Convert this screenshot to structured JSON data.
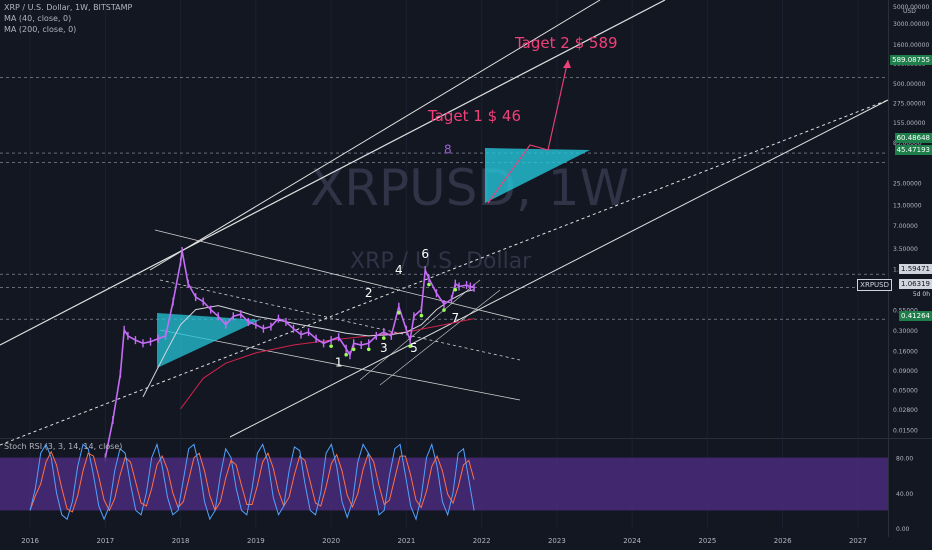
{
  "legend": {
    "symbol_line": "XRP / U.S. Dollar, 1W, BITSTAMP",
    "ma1": "MA (40, close, 0)",
    "ma2": "MA (200, close, 0)",
    "rsi": "Stoch RSI (3, 3, 14, 14, close)"
  },
  "watermark": {
    "symbol": "XRPUSD, 1W",
    "name": "XRP / U.S. Dollar"
  },
  "annotations": {
    "target1": "Taget 1  $ 46",
    "target2": "Taget 2  $ 589",
    "wave_labels": [
      {
        "text": "1",
        "x": 2020.1,
        "y": 0.1
      },
      {
        "text": "2",
        "x": 2020.5,
        "y": 0.8
      },
      {
        "text": "3",
        "x": 2020.7,
        "y": 0.155
      },
      {
        "text": "4",
        "x": 2020.9,
        "y": 1.6
      },
      {
        "text": "5",
        "x": 2021.1,
        "y": 0.155
      },
      {
        "text": "6",
        "x": 2021.25,
        "y": 2.6
      },
      {
        "text": "7",
        "x": 2021.65,
        "y": 0.38
      },
      {
        "text": "8",
        "x": 2021.55,
        "y": 60
      }
    ]
  },
  "price_tags": {
    "t589": "589.08755",
    "t60": "60.48648",
    "t45": "45.47193",
    "t1_59": "1.59471",
    "sym": "XRPUSD",
    "t1_06": "1.06319",
    "sd": "5d 0h",
    "t0_41": "0.41264"
  },
  "colors": {
    "background": "#131722",
    "candles": "#c46cf5",
    "ma40": "#d1d4dc",
    "ma200": "#d1224a",
    "triangle": "#26c6da",
    "target": "#f0407a",
    "wave_label": "#ffffff",
    "wave8": "#9c5fd6",
    "k_line": "#4fa3ff",
    "d_line": "#ff7043",
    "rsi_band": "#4a2a7a",
    "dots": "#9cff57"
  },
  "chart_data": {
    "type": "line",
    "title": "XRP / U.S. Dollar, 1W, BITSTAMP",
    "y_scale": "log",
    "ylim": [
      0.012,
      6000
    ],
    "xlim": [
      2015.6,
      2027.4
    ],
    "x_ticks": [
      "2016",
      "2017",
      "2018",
      "2019",
      "2020",
      "2021",
      "2022",
      "2023",
      "2024",
      "2025",
      "2026",
      "2027"
    ],
    "y_ticks": [
      "5000.00000",
      "3000.00000",
      "1600.00000",
      "900.00000",
      "500.00000",
      "275.00000",
      "155.00000",
      "85.00000",
      "25.00000",
      "13.00000",
      "7.00000",
      "3.50000",
      "1.90000",
      "0.55000",
      "0.30000",
      "0.16000",
      "0.09000",
      "0.05000",
      "0.02800",
      "0.01500"
    ],
    "y_tick_values": [
      5000,
      3000,
      1600,
      900,
      500,
      275,
      155,
      85,
      25,
      13,
      7,
      3.5,
      1.9,
      0.55,
      0.3,
      0.16,
      0.09,
      0.05,
      0.028,
      0.015
    ],
    "y_unit": "USD",
    "series": [
      {
        "x": [
          2017.0,
          2017.1,
          2017.2,
          2017.25,
          2017.3,
          2017.4,
          2017.5,
          2017.6,
          2017.7,
          2017.8,
          2017.9,
          2018.0,
          2018.02,
          2018.1,
          2018.2,
          2018.3,
          2018.4,
          2018.5,
          2018.6,
          2018.7,
          2018.8,
          2018.9,
          2019.0,
          2019.1,
          2019.2,
          2019.3,
          2019.4,
          2019.5,
          2019.6,
          2019.7,
          2019.8,
          2019.9,
          2020.0,
          2020.1,
          2020.2,
          2020.25,
          2020.3,
          2020.4,
          2020.5,
          2020.6,
          2020.7,
          2020.8,
          2020.9,
          2021.0,
          2021.05,
          2021.1,
          2021.2,
          2021.25,
          2021.3,
          2021.4,
          2021.5,
          2021.6,
          2021.65,
          2021.7,
          2021.8,
          2021.85,
          2021.9
        ],
        "y": [
          0.0065,
          0.02,
          0.08,
          0.3,
          0.25,
          0.22,
          0.2,
          0.21,
          0.23,
          0.25,
          0.7,
          2.3,
          3.2,
          1.2,
          0.8,
          0.7,
          0.55,
          0.45,
          0.35,
          0.45,
          0.48,
          0.38,
          0.35,
          0.31,
          0.33,
          0.42,
          0.38,
          0.31,
          0.26,
          0.28,
          0.23,
          0.2,
          0.22,
          0.24,
          0.17,
          0.14,
          0.2,
          0.19,
          0.2,
          0.25,
          0.28,
          0.25,
          0.6,
          0.3,
          0.22,
          0.45,
          0.55,
          1.8,
          1.4,
          0.9,
          0.65,
          0.75,
          1.2,
          1.1,
          1.15,
          1.1,
          1.06
        ]
      },
      {
        "name": "MA (40, close, 0)",
        "x": [
          2017.5,
          2017.8,
          2018.0,
          2018.2,
          2018.5,
          2018.8,
          2019.0,
          2019.3,
          2019.6,
          2019.9,
          2020.2,
          2020.5,
          2020.8,
          2021.0,
          2021.2,
          2021.4,
          2021.6,
          2021.8,
          2021.9
        ],
        "y": [
          0.04,
          0.15,
          0.35,
          0.55,
          0.62,
          0.52,
          0.45,
          0.4,
          0.35,
          0.31,
          0.27,
          0.25,
          0.26,
          0.28,
          0.35,
          0.55,
          0.75,
          0.95,
          1.0
        ]
      },
      {
        "name": "MA (200, close, 0)",
        "x": [
          2018.0,
          2018.3,
          2018.6,
          2019.0,
          2019.5,
          2020.0,
          2020.5,
          2021.0,
          2021.5,
          2021.9
        ],
        "y": [
          0.028,
          0.07,
          0.11,
          0.15,
          0.19,
          0.22,
          0.25,
          0.28,
          0.35,
          0.42
        ]
      }
    ],
    "stoch_rsi": {
      "title": "Stoch RSI (3, 3, 14, 14, close)",
      "ylim": [
        0,
        100
      ],
      "y_ticks": [
        "80.00",
        "40.00",
        "0.00"
      ],
      "y_tick_values": [
        80,
        40,
        0
      ],
      "band": [
        20,
        80
      ],
      "k": [
        20,
        45,
        85,
        95,
        80,
        40,
        15,
        10,
        30,
        70,
        95,
        90,
        60,
        25,
        10,
        25,
        65,
        90,
        85,
        50,
        20,
        15,
        40,
        80,
        95,
        70,
        35,
        15,
        20,
        55,
        90,
        95,
        70,
        30,
        10,
        20,
        60,
        90,
        80,
        45,
        20,
        15,
        45,
        85,
        95,
        75,
        35,
        15,
        25,
        65,
        92,
        88,
        50,
        20,
        15,
        40,
        85,
        95,
        70,
        30,
        12,
        30,
        75,
        95,
        85,
        45,
        15,
        20,
        60,
        90,
        95,
        60,
        25,
        10,
        35,
        80,
        95,
        70,
        30,
        15,
        40,
        85,
        90,
        55,
        20
      ],
      "x_start": 2016.0,
      "x_end": 2021.9
    }
  }
}
